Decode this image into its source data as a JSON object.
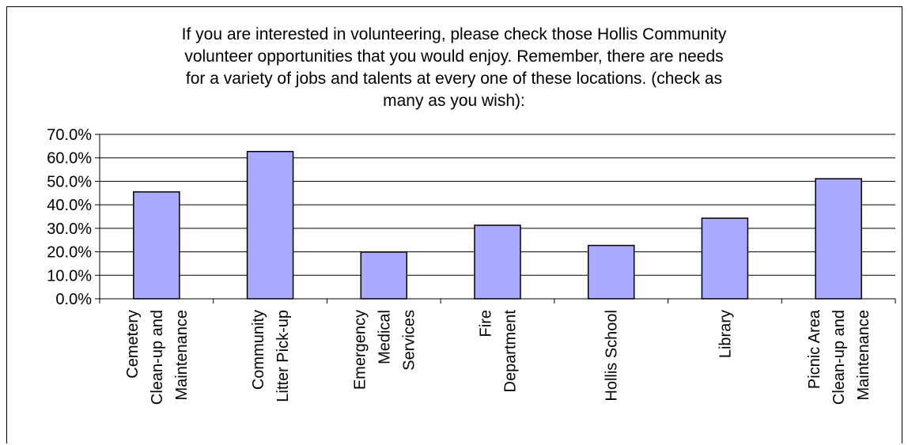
{
  "chart_data": {
    "type": "bar",
    "title_lines": [
      "If you are interested in volunteering, please check those Hollis Community",
      "volunteer opportunities that you would enjoy.  Remember, there are needs",
      "for a variety of jobs and talents at every one of these locations. (check as",
      "many as you wish):"
    ],
    "categories": [
      [
        "Cemetery",
        "Clean-up and",
        "Maintenance"
      ],
      [
        "Community",
        "Litter Pick-up"
      ],
      [
        "Emergency",
        "Medical",
        "Services"
      ],
      [
        "Fire",
        "Department"
      ],
      [
        "Hollis School"
      ],
      [
        "Library"
      ],
      [
        "Picnic Area",
        "Clean-up and",
        "Maintenance"
      ]
    ],
    "values": [
      45.5,
      62.7,
      19.9,
      31.3,
      22.7,
      34.3,
      51.1
    ],
    "ylim": [
      0,
      70
    ],
    "yticks": [
      "0.0%",
      "10.0%",
      "20.0%",
      "30.0%",
      "40.0%",
      "50.0%",
      "60.0%",
      "70.0%"
    ],
    "bar_color": "#aaaaff",
    "grid": true,
    "legend": false
  }
}
